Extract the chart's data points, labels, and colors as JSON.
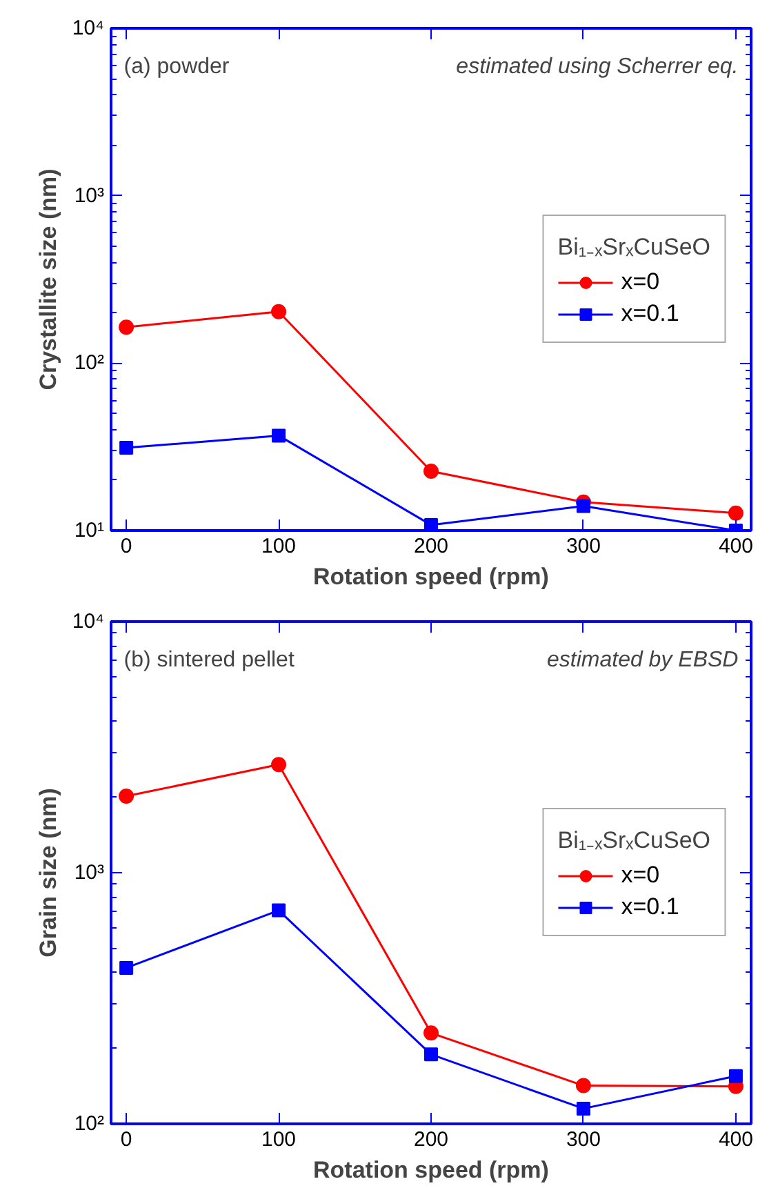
{
  "chart_data": [
    {
      "type": "line",
      "xlabel": "Rotation speed (rpm)",
      "ylabel": "Crystallite size (nm)",
      "legend_title": "Bi₁₋ₓSrₓCuSeO",
      "annotations": [
        "(a) powder",
        "estimated using Scherrer eq."
      ],
      "x": [
        0,
        100,
        200,
        300,
        400
      ],
      "xlim": [
        -10,
        410
      ],
      "xticks": [
        0,
        100,
        200,
        300,
        400
      ],
      "ylim": [
        10,
        10000
      ],
      "yticks": [
        {
          "value": 10,
          "label": "10¹"
        },
        {
          "value": 100,
          "label": "10²"
        },
        {
          "value": 1000,
          "label": "10³"
        },
        {
          "value": 10000,
          "label": "10⁴"
        }
      ],
      "log": true,
      "grid": false,
      "legend": "right",
      "series": [
        {
          "name": "x=0",
          "color": "#ff0000",
          "marker": "circle",
          "values": [
            164,
            203,
            22.6,
            14.8,
            12.7
          ]
        },
        {
          "name": "x=0.1",
          "color": "#0000ff",
          "marker": "square",
          "values": [
            31.2,
            36.9,
            10.8,
            14.0,
            10.0
          ]
        }
      ]
    },
    {
      "type": "line",
      "xlabel": "Rotation speed (rpm)",
      "ylabel": "Grain size (nm)",
      "legend_title": "Bi₁₋ₓSrₓCuSeO",
      "annotations": [
        "(b) sintered pellet",
        "estimated by EBSD"
      ],
      "x": [
        0,
        100,
        200,
        300,
        400
      ],
      "xlim": [
        -10,
        410
      ],
      "xticks": [
        0,
        100,
        200,
        300,
        400
      ],
      "ylim": [
        100,
        10000
      ],
      "yticks": [
        {
          "value": 100,
          "label": "10²"
        },
        {
          "value": 1000,
          "label": "10³"
        },
        {
          "value": 10000,
          "label": "10⁴"
        }
      ],
      "log": true,
      "grid": false,
      "legend": "right",
      "series": [
        {
          "name": "x=0",
          "color": "#ff0000",
          "marker": "circle",
          "values": [
            2018,
            2694,
            230,
            142,
            141
          ]
        },
        {
          "name": "x=0.1",
          "color": "#0000ff",
          "marker": "square",
          "values": [
            418,
            708,
            189,
            115,
            155
          ]
        }
      ]
    }
  ]
}
